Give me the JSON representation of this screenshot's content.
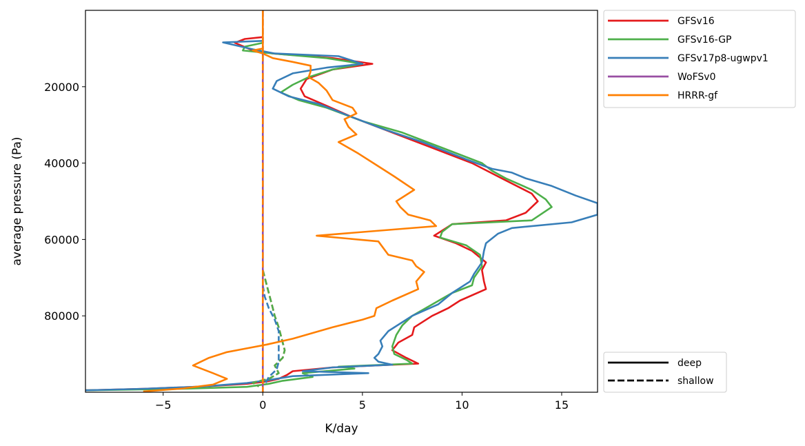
{
  "chart_data": {
    "type": "line",
    "xlabel": "K/day",
    "ylabel": "average pressure (Pa)",
    "xlim": [
      -8.9,
      16.8
    ],
    "ylim": [
      100000,
      0
    ],
    "y_axis_inverted": true,
    "x_ticks": [
      -5,
      0,
      5,
      10,
      15
    ],
    "x_tick_labels": [
      "−5",
      "0",
      "5",
      "10",
      "15"
    ],
    "y_ticks": [
      20000,
      40000,
      60000,
      80000
    ],
    "y_tick_labels": [
      "20000",
      "40000",
      "60000",
      "80000"
    ],
    "grid": false,
    "legend_placement": "outside-right",
    "colors": {
      "GFSv16": "#e41a1c",
      "GFSv16-GP": "#4daf4a",
      "GFSv17p8-ugwpv1": "#377eb8",
      "WoFSv0": "#984ea3",
      "HRRR-gf": "#ff7f00"
    },
    "legend_models": [
      {
        "name": "GFSv16",
        "color": "#e41a1c"
      },
      {
        "name": "GFSv16-GP",
        "color": "#4daf4a"
      },
      {
        "name": "GFSv17p8-ugwpv1",
        "color": "#377eb8"
      },
      {
        "name": "WoFSv0",
        "color": "#984ea3"
      },
      {
        "name": "HRRR-gf",
        "color": "#ff7f00"
      }
    ],
    "legend_styles": [
      {
        "name": "deep",
        "dash": "solid"
      },
      {
        "name": "shallow",
        "dash": "dashed"
      }
    ],
    "series": [
      {
        "model": "GFSv16",
        "style": "deep",
        "color": "#e41a1c",
        "points": [
          [
            0,
            7000
          ],
          [
            -0.9,
            7500
          ],
          [
            -1.4,
            8500
          ],
          [
            -0.5,
            10500
          ],
          [
            0.5,
            11300
          ],
          [
            3.5,
            12500
          ],
          [
            5.5,
            14000
          ],
          [
            3.5,
            15500
          ],
          [
            2.2,
            18000
          ],
          [
            1.9,
            20500
          ],
          [
            2.1,
            22500
          ],
          [
            3.2,
            25000
          ],
          [
            4.5,
            28000
          ],
          [
            6.5,
            32000
          ],
          [
            8.5,
            36000
          ],
          [
            10.5,
            40000
          ],
          [
            12,
            44000
          ],
          [
            13.5,
            48000
          ],
          [
            13.8,
            50000
          ],
          [
            13.2,
            53000
          ],
          [
            12.2,
            55000
          ],
          [
            9.5,
            56000
          ],
          [
            9.2,
            57000
          ],
          [
            8.6,
            59000
          ],
          [
            9.7,
            61000
          ],
          [
            10.5,
            63000
          ],
          [
            11.2,
            66000
          ],
          [
            11,
            68000
          ],
          [
            11.1,
            71000
          ],
          [
            11.2,
            73000
          ],
          [
            9.9,
            76000
          ],
          [
            9.3,
            78000
          ],
          [
            8.5,
            80000
          ],
          [
            7.6,
            83000
          ],
          [
            7.5,
            85000
          ],
          [
            6.8,
            87000
          ],
          [
            6.5,
            89000
          ],
          [
            7.2,
            91000
          ],
          [
            7.8,
            92500
          ],
          [
            3.5,
            93500
          ],
          [
            1.5,
            94500
          ],
          [
            1.2,
            95500
          ],
          [
            0.8,
            96500
          ],
          [
            0.2,
            97200
          ],
          [
            -0.8,
            97800
          ],
          [
            -3,
            98500
          ],
          [
            -6,
            99100
          ],
          [
            -8.9,
            99500
          ]
        ]
      },
      {
        "model": "GFSv16-GP",
        "style": "deep",
        "color": "#4daf4a",
        "points": [
          [
            0,
            8500
          ],
          [
            -0.9,
            9500
          ],
          [
            -1,
            10500
          ],
          [
            0.5,
            11300
          ],
          [
            3.2,
            12500
          ],
          [
            5,
            14000
          ],
          [
            3.5,
            15500
          ],
          [
            2.3,
            17500
          ],
          [
            1.5,
            19500
          ],
          [
            0.9,
            21500
          ],
          [
            1.8,
            23500
          ],
          [
            3.2,
            25500
          ],
          [
            5,
            29000
          ],
          [
            7,
            32000
          ],
          [
            9,
            36000
          ],
          [
            11,
            40000
          ],
          [
            11.5,
            42000
          ],
          [
            12.2,
            44000
          ],
          [
            13.5,
            47000
          ],
          [
            14.2,
            49500
          ],
          [
            14.5,
            51500
          ],
          [
            13.5,
            55000
          ],
          [
            9.5,
            56000
          ],
          [
            9,
            58000
          ],
          [
            8.9,
            59500
          ],
          [
            10.2,
            61500
          ],
          [
            10.9,
            64000
          ],
          [
            11,
            67000
          ],
          [
            10.6,
            70000
          ],
          [
            10.5,
            72000
          ],
          [
            9.5,
            74000
          ],
          [
            8.5,
            77000
          ],
          [
            7.5,
            80000
          ],
          [
            7,
            82500
          ],
          [
            6.7,
            85000
          ],
          [
            6.5,
            88000
          ],
          [
            6.6,
            90000
          ],
          [
            7.2,
            91500
          ],
          [
            7.5,
            92500
          ],
          [
            3.8,
            93300
          ],
          [
            4.6,
            93800
          ],
          [
            2,
            95000
          ],
          [
            2.5,
            96000
          ],
          [
            1,
            97000
          ],
          [
            0.3,
            97800
          ],
          [
            -0.8,
            98600
          ],
          [
            -4,
            99100
          ],
          [
            -8.9,
            99500
          ]
        ]
      },
      {
        "model": "GFSv17p8-ugwpv1",
        "style": "deep",
        "color": "#377eb8",
        "points": [
          [
            0,
            8000
          ],
          [
            -2,
            8400
          ],
          [
            -0.5,
            10200
          ],
          [
            0.6,
            11300
          ],
          [
            3.8,
            12000
          ],
          [
            5,
            14000
          ],
          [
            3.2,
            15000
          ],
          [
            1.5,
            16500
          ],
          [
            0.7,
            18500
          ],
          [
            0.5,
            20500
          ],
          [
            1.3,
            22500
          ],
          [
            2.8,
            24500
          ],
          [
            4.5,
            28000
          ],
          [
            6,
            31000
          ],
          [
            8,
            34500
          ],
          [
            10.2,
            39000
          ],
          [
            11.5,
            41500
          ],
          [
            12.5,
            42500
          ],
          [
            13.2,
            44000
          ],
          [
            14.5,
            46000
          ],
          [
            15.7,
            48500
          ],
          [
            16.8,
            50500
          ],
          [
            16.8,
            53500
          ],
          [
            15.5,
            55500
          ],
          [
            12.5,
            57000
          ],
          [
            11.8,
            58500
          ],
          [
            11.2,
            61000
          ],
          [
            11.1,
            63000
          ],
          [
            11,
            66000
          ],
          [
            10.6,
            69000
          ],
          [
            10.4,
            71000
          ],
          [
            9.5,
            74000
          ],
          [
            8.8,
            77000
          ],
          [
            7.5,
            80000
          ],
          [
            6.3,
            84000
          ],
          [
            5.9,
            86500
          ],
          [
            6,
            88000
          ],
          [
            5.8,
            90000
          ],
          [
            5.6,
            91000
          ],
          [
            5.8,
            92000
          ],
          [
            6.5,
            92800
          ],
          [
            3.5,
            93500
          ],
          [
            2,
            94500
          ],
          [
            5.3,
            95000
          ],
          [
            1.5,
            95800
          ],
          [
            0.3,
            96800
          ],
          [
            -0.8,
            97600
          ],
          [
            -3,
            98500
          ],
          [
            -6,
            99100
          ],
          [
            -8.9,
            99500
          ]
        ]
      },
      {
        "model": "GFSv16",
        "style": "shallow",
        "color": "#e41a1c",
        "points": [
          [
            0,
            68000
          ],
          [
            0.1,
            70000
          ],
          [
            0.2,
            72000
          ],
          [
            0.3,
            74000
          ],
          [
            0.4,
            76000
          ],
          [
            0.5,
            78000
          ],
          [
            0.6,
            80000
          ],
          [
            0.8,
            83000
          ],
          [
            0.9,
            85000
          ],
          [
            1,
            87000
          ],
          [
            1.1,
            89000
          ],
          [
            1,
            91000
          ],
          [
            0.6,
            93000
          ],
          [
            0.8,
            95000
          ],
          [
            0.3,
            96500
          ],
          [
            -0.5,
            97500
          ],
          [
            -0.2,
            98500
          ]
        ]
      },
      {
        "model": "GFSv16-GP",
        "style": "shallow",
        "color": "#4daf4a",
        "points": [
          [
            0,
            68000
          ],
          [
            0.1,
            70000
          ],
          [
            0.2,
            72000
          ],
          [
            0.3,
            74000
          ],
          [
            0.4,
            76000
          ],
          [
            0.5,
            78000
          ],
          [
            0.6,
            80000
          ],
          [
            0.8,
            83000
          ],
          [
            0.9,
            85000
          ],
          [
            1,
            87000
          ],
          [
            1.1,
            89000
          ],
          [
            1,
            91000
          ],
          [
            0.6,
            93000
          ],
          [
            0.8,
            95000
          ],
          [
            0.3,
            96500
          ],
          [
            -0.5,
            97500
          ],
          [
            -0.2,
            98500
          ]
        ]
      },
      {
        "model": "GFSv17p8-ugwpv1",
        "style": "shallow",
        "color": "#377eb8",
        "points": [
          [
            0,
            72000
          ],
          [
            0.1,
            75000
          ],
          [
            0.3,
            78000
          ],
          [
            0.6,
            81000
          ],
          [
            0.8,
            84000
          ],
          [
            0.8,
            87000
          ],
          [
            0.8,
            89000
          ],
          [
            0.8,
            92000
          ],
          [
            0.7,
            94000
          ],
          [
            0.3,
            96000
          ],
          [
            0.1,
            98000
          ]
        ]
      },
      {
        "model": "WoFSv0",
        "style": "deep",
        "color": "#984ea3",
        "points": [
          [
            0,
            0
          ],
          [
            0,
            100000
          ]
        ]
      },
      {
        "model": "WoFSv0",
        "style": "shallow",
        "color": "#984ea3",
        "points": [
          [
            0,
            0
          ],
          [
            0,
            100000
          ]
        ]
      },
      {
        "model": "GFSv17p8-ugwpv1",
        "style": "shallow",
        "color": "#377eb8",
        "points": [
          [
            0,
            0
          ],
          [
            0,
            68000
          ]
        ]
      },
      {
        "model": "HRRR-gf",
        "style": "deep",
        "color": "#ff7f00",
        "points": [
          [
            0,
            0
          ],
          [
            0,
            10000
          ],
          [
            -0.5,
            10500
          ],
          [
            0,
            11300
          ],
          [
            0.5,
            12500
          ],
          [
            1.5,
            13500
          ],
          [
            2.4,
            14500
          ],
          [
            2.4,
            16000
          ],
          [
            2.3,
            17500
          ],
          [
            2.8,
            19000
          ],
          [
            3.2,
            21000
          ],
          [
            3.5,
            23500
          ],
          [
            4.5,
            25500
          ],
          [
            4.7,
            27000
          ],
          [
            4.1,
            28500
          ],
          [
            4.3,
            30500
          ],
          [
            4.7,
            32500
          ],
          [
            3.8,
            34500
          ],
          [
            4.8,
            37500
          ],
          [
            5.7,
            40500
          ],
          [
            6.6,
            43500
          ],
          [
            7.6,
            47000
          ],
          [
            6.7,
            50000
          ],
          [
            6.9,
            51500
          ],
          [
            7.3,
            53500
          ],
          [
            8.4,
            55000
          ],
          [
            8.7,
            56500
          ],
          [
            2.7,
            59000
          ],
          [
            5.8,
            60500
          ],
          [
            6.3,
            64000
          ],
          [
            7.5,
            65500
          ],
          [
            7.7,
            67000
          ],
          [
            8.1,
            68500
          ],
          [
            7.7,
            71000
          ],
          [
            7.8,
            73000
          ],
          [
            6.5,
            76000
          ],
          [
            5.7,
            78000
          ],
          [
            5.6,
            80000
          ],
          [
            5,
            81000
          ],
          [
            3.5,
            83000
          ],
          [
            1.5,
            86000
          ],
          [
            0.2,
            87500
          ],
          [
            -1.8,
            89500
          ],
          [
            -2.7,
            91000
          ],
          [
            -3.5,
            93000
          ],
          [
            -2.5,
            95000
          ],
          [
            -1.8,
            96500
          ],
          [
            -2.5,
            98000
          ],
          [
            -4,
            99000
          ],
          [
            -6,
            99800
          ]
        ]
      },
      {
        "model": "HRRR-gf",
        "style": "shallow",
        "color": "#ff7f00",
        "points": [
          [
            0,
            0
          ],
          [
            0,
            100000
          ]
        ]
      }
    ]
  }
}
